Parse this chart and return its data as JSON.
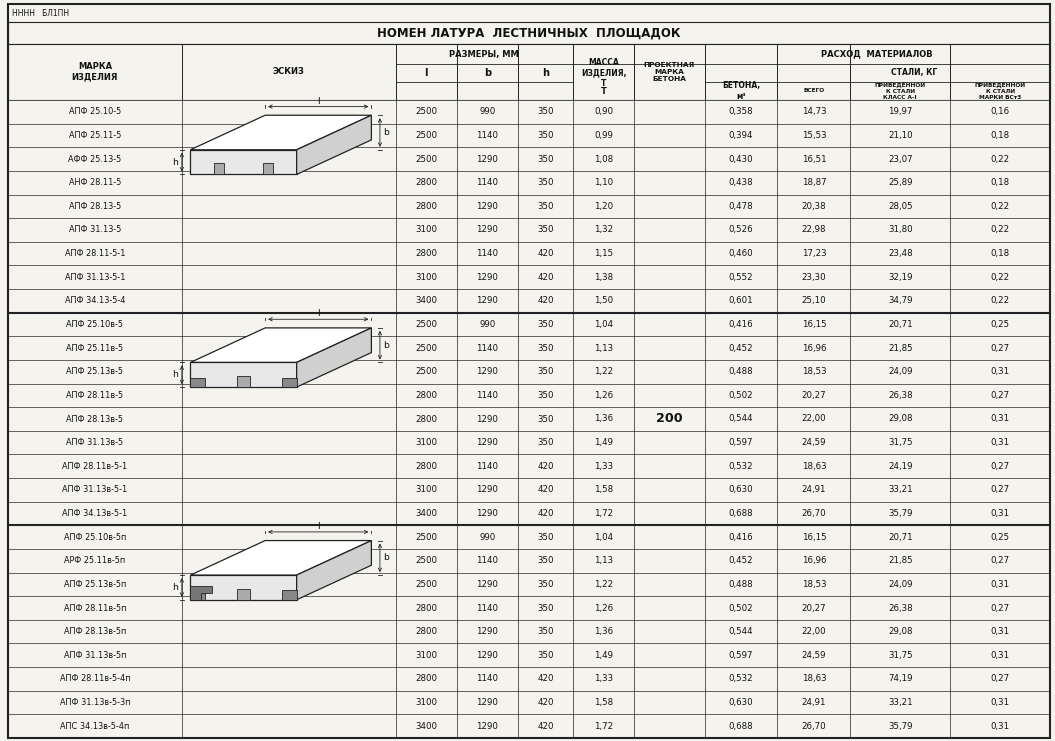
{
  "title": "НОМЕН ЛАТУРА  ЛЕСТНИЧНЫХ  ПЛОЩАДОК",
  "top_stamp": "НННН   БЛ1ПН",
  "rows": [
    [
      "АПФ 25.10-5",
      "2500",
      "990",
      "350",
      "0,90",
      "0,358",
      "14,73",
      "19,97",
      "0,16"
    ],
    [
      "АПФ 25.11-5",
      "2500",
      "1140",
      "350",
      "0,99",
      "0,394",
      "15,53",
      "21,10",
      "0,18"
    ],
    [
      "АФФ 25.13-5",
      "2500",
      "1290",
      "350",
      "1,08",
      "0,430",
      "16,51",
      "23,07",
      "0,22"
    ],
    [
      "АНФ 28.11-5",
      "2800",
      "1140",
      "350",
      "1,10",
      "0,438",
      "18,87",
      "25,89",
      "0,18"
    ],
    [
      "АПФ 28.13-5",
      "2800",
      "1290",
      "350",
      "1,20",
      "0,478",
      "20,38",
      "28,05",
      "0,22"
    ],
    [
      "АПФ 31.13-5",
      "3100",
      "1290",
      "350",
      "1,32",
      "0,526",
      "22,98",
      "31,80",
      "0,22"
    ],
    [
      "АПФ 28.11-5-1",
      "2800",
      "1140",
      "420",
      "1,15",
      "0,460",
      "17,23",
      "23,48",
      "0,18"
    ],
    [
      "АПФ 31.13-5-1",
      "3100",
      "1290",
      "420",
      "1,38",
      "0,552",
      "23,30",
      "32,19",
      "0,22"
    ],
    [
      "АПФ 34.13-5-4",
      "3400",
      "1290",
      "420",
      "1,50",
      "0,601",
      "25,10",
      "34,79",
      "0,22"
    ],
    [
      "АПФ 25.10в-5",
      "2500",
      "990",
      "350",
      "1,04",
      "0,416",
      "16,15",
      "20,71",
      "0,25"
    ],
    [
      "АПФ 25.11в-5",
      "2500",
      "1140",
      "350",
      "1,13",
      "0,452",
      "16,96",
      "21,85",
      "0,27"
    ],
    [
      "АПФ 25.13в-5",
      "2500",
      "1290",
      "350",
      "1,22",
      "0,488",
      "18,53",
      "24,09",
      "0,31"
    ],
    [
      "АПФ 28.11в-5",
      "2800",
      "1140",
      "350",
      "1,26",
      "0,502",
      "20,27",
      "26,38",
      "0,27"
    ],
    [
      "АПФ 28.13в-5",
      "2800",
      "1290",
      "350",
      "1,36",
      "0,544",
      "22,00",
      "29,08",
      "0,31"
    ],
    [
      "АПФ 31.13в-5",
      "3100",
      "1290",
      "350",
      "1,49",
      "0,597",
      "24,59",
      "31,75",
      "0,31"
    ],
    [
      "АПФ 28.11в-5-1",
      "2800",
      "1140",
      "420",
      "1,33",
      "0,532",
      "18,63",
      "24,19",
      "0,27"
    ],
    [
      "АПФ 31.13в-5-1",
      "3100",
      "1290",
      "420",
      "1,58",
      "0,630",
      "24,91",
      "33,21",
      "0,27"
    ],
    [
      "АПФ 34.13в-5-1",
      "3400",
      "1290",
      "420",
      "1,72",
      "0,688",
      "26,70",
      "35,79",
      "0,31"
    ],
    [
      "АПФ 25.10в-5п",
      "2500",
      "990",
      "350",
      "1,04",
      "0,416",
      "16,15",
      "20,71",
      "0,25"
    ],
    [
      "АРФ 25.11в-5п",
      "2500",
      "1140",
      "350",
      "1,13",
      "0,452",
      "16,96",
      "21,85",
      "0,27"
    ],
    [
      "АПФ 25.13в-5п",
      "2500",
      "1290",
      "350",
      "1,22",
      "0,488",
      "18,53",
      "24,09",
      "0,31"
    ],
    [
      "АПФ 28.11в-5п",
      "2800",
      "1140",
      "350",
      "1,26",
      "0,502",
      "20,27",
      "26,38",
      "0,27"
    ],
    [
      "АПФ 28.13в-5п",
      "2800",
      "1290",
      "350",
      "1,36",
      "0,544",
      "22,00",
      "29,08",
      "0,31"
    ],
    [
      "АПФ 31.13в-5п",
      "3100",
      "1290",
      "350",
      "1,49",
      "0,597",
      "24,59",
      "31,75",
      "0,31"
    ],
    [
      "АПФ 28.11в-5-4п",
      "2800",
      "1140",
      "420",
      "1,33",
      "0,532",
      "18,63",
      "74,19",
      "0,27"
    ],
    [
      "АПФ 31.13в-5-3п",
      "3100",
      "1290",
      "420",
      "1,58",
      "0,630",
      "24,91",
      "33,21",
      "0,31"
    ],
    [
      "АПС 34.13в-5-4п",
      "3400",
      "1290",
      "420",
      "1,72",
      "0,688",
      "26,70",
      "35,79",
      "0,31"
    ]
  ],
  "group_ends": [
    8,
    17,
    26
  ],
  "beton_mark": "200",
  "bg_color": "#f5f3ee",
  "line_color": "#222222",
  "text_color": "#111111",
  "fs_data": 6.2,
  "fs_header": 6.0,
  "fs_title": 8.5
}
